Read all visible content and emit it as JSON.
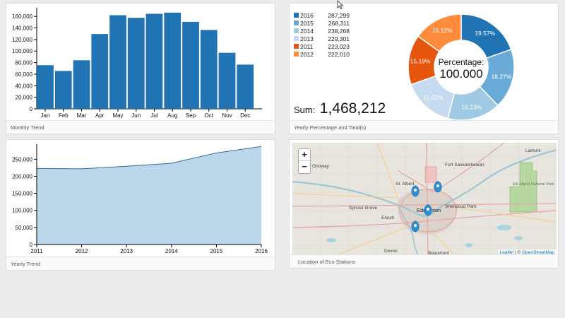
{
  "monthly": {
    "footer": "Monthly Trend",
    "chart_data": {
      "type": "bar",
      "categories": [
        "Jan",
        "Feb",
        "Mar",
        "Apr",
        "May",
        "Jun",
        "Jul",
        "Aug",
        "Sep",
        "Oct",
        "Nov",
        "Dec"
      ],
      "values": [
        75500,
        65500,
        84000,
        129500,
        162000,
        157500,
        164500,
        166500,
        150500,
        136500,
        97000,
        76500
      ],
      "yticks": [
        "0",
        "20,000",
        "40,000",
        "60,000",
        "80,000",
        "100,000",
        "120,000",
        "140,000",
        "160,000"
      ],
      "ylim": [
        0,
        170000
      ],
      "color": "#2074b4"
    }
  },
  "yearly_pct": {
    "footer": "Yearly Percentage and Total(s)",
    "legend": [
      {
        "year": "2016",
        "value": "287,299",
        "color": "#2074b4"
      },
      {
        "year": "2015",
        "value": "268,311",
        "color": "#6aaad6"
      },
      {
        "year": "2014",
        "value": "238,268",
        "color": "#9ecae3"
      },
      {
        "year": "2013",
        "value": "229,301",
        "color": "#c6dbef"
      },
      {
        "year": "2011",
        "value": "223,023",
        "color": "#e6550d"
      },
      {
        "year": "2012",
        "value": "222,010",
        "color": "#fd8d3c"
      }
    ],
    "sum_label": "Sum:",
    "sum_value": "1,468,212",
    "center_label": "Percentage:",
    "center_value": "100.000",
    "chart_data": {
      "type": "pie",
      "labels": [
        "2016",
        "2015",
        "2014",
        "2013",
        "2011",
        "2012"
      ],
      "values": [
        19.57,
        18.27,
        16.23,
        15.62,
        15.19,
        15.12
      ],
      "value_labels": [
        "19.57%",
        "18.27%",
        "16.23%",
        "15.62%",
        "15.19%",
        "15.12%"
      ],
      "colors": [
        "#2074b4",
        "#6aaad6",
        "#9ecae3",
        "#c6dbef",
        "#e6550d",
        "#fd8d3c"
      ]
    }
  },
  "yearly_trend": {
    "footer": "Yearly Trend",
    "chart_data": {
      "type": "area",
      "x": [
        "2011",
        "2012",
        "2013",
        "2014",
        "2015",
        "2016"
      ],
      "values": [
        223023,
        222010,
        229301,
        238268,
        268311,
        287299
      ],
      "yticks": [
        "0",
        "50,000",
        "100,000",
        "150,000",
        "200,000",
        "250,000"
      ],
      "ylim": [
        0,
        290000
      ],
      "fill": "#bcd6ea",
      "stroke": "#2f6d9e"
    }
  },
  "map": {
    "footer": "Location of Eco Stations",
    "zoom_in": "+",
    "zoom_out": "−",
    "attribution_leaflet": "Leaflet",
    "attribution_sep": " | © ",
    "attribution_osm": "OpenStreetMap",
    "labels": [
      "Lamont",
      "Fort Saskatchewan",
      "Onoway",
      "Elk Island National Park",
      "St. Albert",
      "Spruce Grove",
      "Edmonton",
      "Sherwood Park",
      "Enoch",
      "Devon",
      "Beaumont"
    ]
  }
}
